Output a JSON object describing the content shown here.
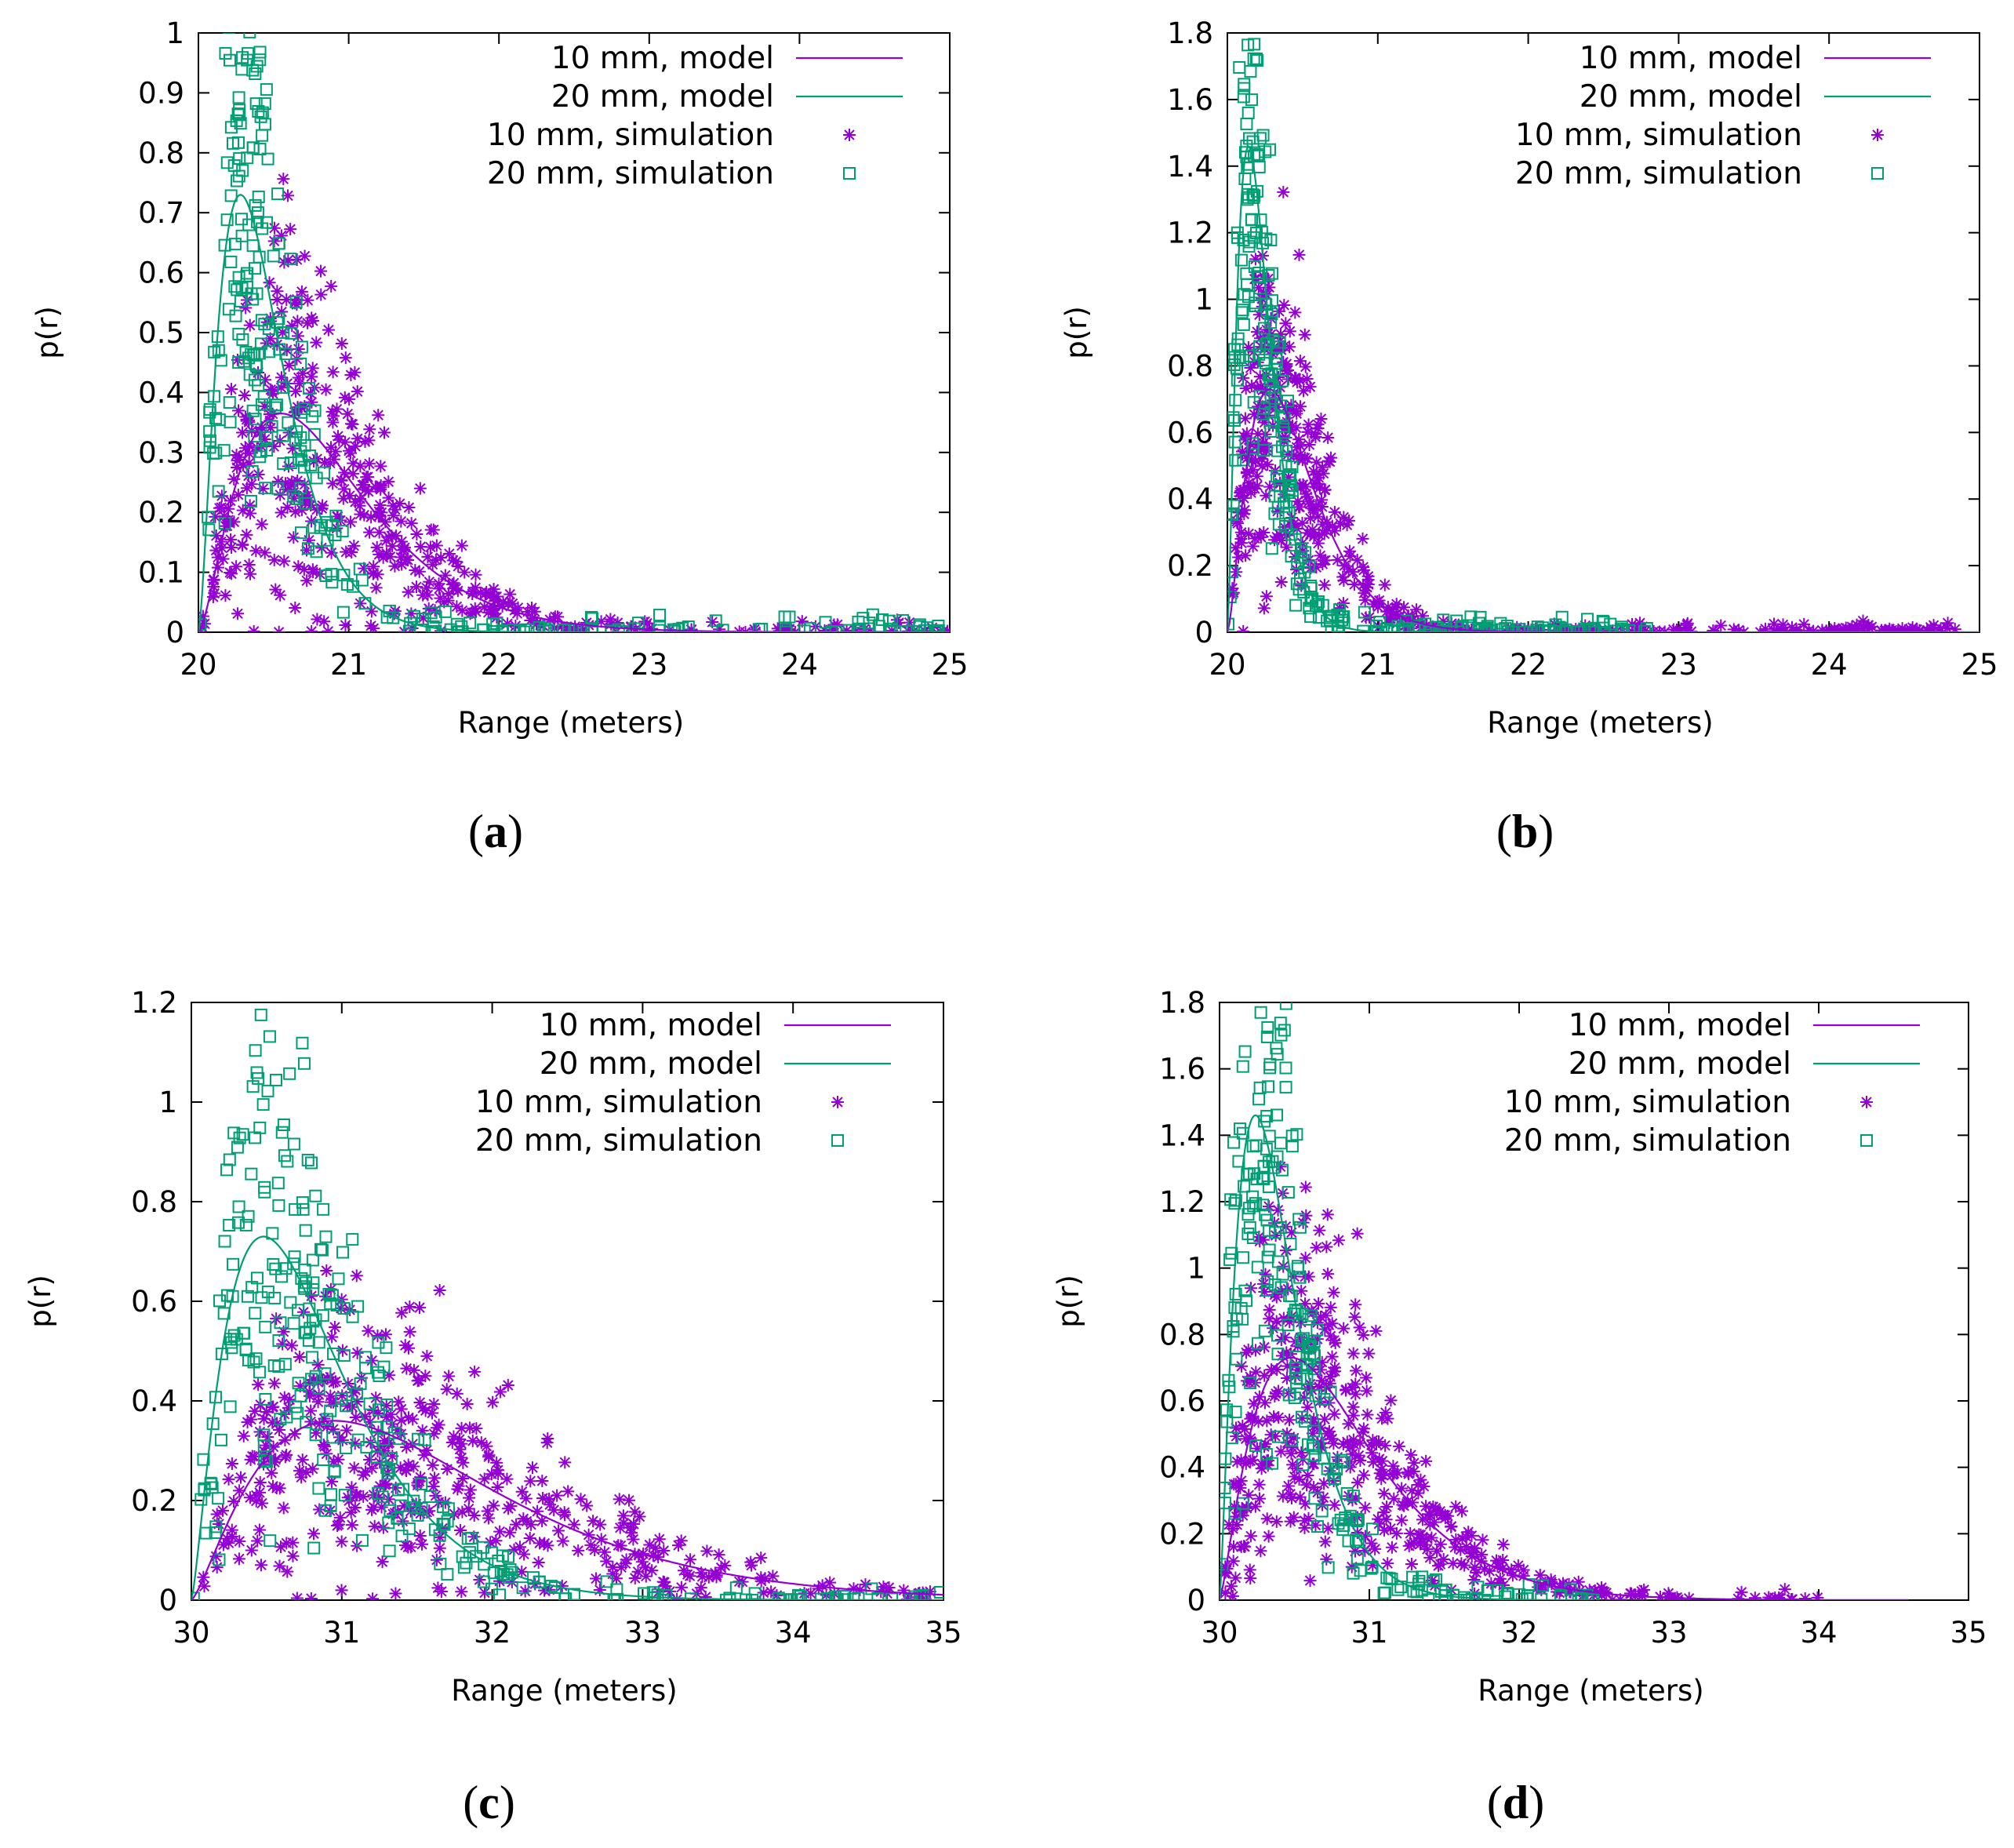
{
  "figure": {
    "domain": "Chart"
  },
  "colors": {
    "ten_mm": "#9400d3",
    "twenty_mm": "#009e73",
    "axis": "#000000"
  },
  "chart_data": [
    {
      "id": "a",
      "type": "line+scatter",
      "caption_letter": "a",
      "xlabel": "Range (meters)",
      "ylabel": "p(r)",
      "xlim": [
        20,
        25
      ],
      "ylim": [
        0,
        1
      ],
      "xticks": [
        20,
        21,
        22,
        23,
        24,
        25
      ],
      "yticks": [
        0,
        0.1,
        0.2,
        0.3,
        0.4,
        0.5,
        0.6,
        0.7,
        0.8,
        0.9,
        1
      ],
      "ytick_labels": [
        "0",
        "0.1",
        "0.2",
        "0.3",
        "0.4",
        "0.5",
        "0.6",
        "0.7",
        "0.8",
        "0.9",
        "1"
      ],
      "legend_position": "top-right",
      "series": [
        {
          "name": "10 mm, model",
          "kind": "line",
          "color": "#9400d3",
          "r0": 20,
          "mode": 20.55,
          "peak": 0.365,
          "k": 1.6,
          "x_end": 25
        },
        {
          "name": "20 mm, model",
          "kind": "line",
          "color": "#009e73",
          "r0": 20,
          "mode": 20.28,
          "peak": 0.73,
          "k": 1.6,
          "x_end": 25
        },
        {
          "name": "10 mm, simulation",
          "kind": "scatter",
          "marker": "star",
          "color": "#9400d3",
          "count": 480,
          "spread": 0.45,
          "seed": 11,
          "x_end": 25
        },
        {
          "name": "20 mm, simulation",
          "kind": "scatter",
          "marker": "square",
          "color": "#009e73",
          "count": 300,
          "spread": 0.35,
          "seed": 23,
          "x_end": 25
        }
      ]
    },
    {
      "id": "b",
      "type": "line+scatter",
      "caption_letter": "b",
      "xlabel": "Range (meters)",
      "ylabel": "p(r)",
      "xlim": [
        20,
        25
      ],
      "ylim": [
        0,
        1.8
      ],
      "xticks": [
        20,
        21,
        22,
        23,
        24,
        25
      ],
      "yticks": [
        0,
        0.2,
        0.4,
        0.6,
        0.8,
        1,
        1.2,
        1.4,
        1.6,
        1.8
      ],
      "ytick_labels": [
        "0",
        "0.2",
        "0.4",
        "0.6",
        "0.8",
        "1",
        "1.2",
        "1.4",
        "1.6",
        "1.8"
      ],
      "legend_position": "top-right",
      "series": [
        {
          "name": "10 mm, model",
          "kind": "line",
          "color": "#9400d3",
          "r0": 20,
          "mode": 20.28,
          "peak": 0.73,
          "k": 1.6,
          "x_end": 25
        },
        {
          "name": "20 mm, model",
          "kind": "line",
          "color": "#009e73",
          "r0": 20,
          "mode": 20.14,
          "peak": 1.46,
          "k": 1.6,
          "x_end": 25
        },
        {
          "name": "10 mm, simulation",
          "kind": "scatter",
          "marker": "star",
          "color": "#9400d3",
          "count": 480,
          "spread": 0.4,
          "seed": 37,
          "x_end": 24.85
        },
        {
          "name": "20 mm, simulation",
          "kind": "scatter",
          "marker": "square",
          "color": "#009e73",
          "count": 300,
          "spread": 0.32,
          "seed": 41,
          "x_end": 22.8
        }
      ]
    },
    {
      "id": "c",
      "type": "line+scatter",
      "caption_letter": "c",
      "xlabel": "Range (meters)",
      "ylabel": "p(r)",
      "xlim": [
        30,
        35
      ],
      "ylim": [
        0,
        1.2
      ],
      "xticks": [
        30,
        31,
        32,
        33,
        34,
        35
      ],
      "yticks": [
        0,
        0.2,
        0.4,
        0.6,
        0.8,
        1,
        1.2
      ],
      "ytick_labels": [
        "0",
        "0.2",
        "0.4",
        "0.6",
        "0.8",
        "1",
        "1.2"
      ],
      "legend_position": "top-right",
      "series": [
        {
          "name": "10 mm, model",
          "kind": "line",
          "color": "#9400d3",
          "r0": 30,
          "mode": 30.95,
          "peak": 0.36,
          "k": 1.35,
          "x_end": 35
        },
        {
          "name": "20 mm, model",
          "kind": "line",
          "color": "#009e73",
          "r0": 30,
          "mode": 30.48,
          "peak": 0.73,
          "k": 1.35,
          "x_end": 35
        },
        {
          "name": "10 mm, simulation",
          "kind": "scatter",
          "marker": "star",
          "color": "#9400d3",
          "count": 480,
          "spread": 0.45,
          "seed": 53,
          "x_end": 35
        },
        {
          "name": "20 mm, simulation",
          "kind": "scatter",
          "marker": "square",
          "color": "#009e73",
          "count": 300,
          "spread": 0.35,
          "seed": 67,
          "x_end": 35
        }
      ]
    },
    {
      "id": "d",
      "type": "line+scatter",
      "caption_letter": "d",
      "xlabel": "Range (meters)",
      "ylabel": "p(r)",
      "xlim": [
        30,
        35
      ],
      "ylim": [
        0,
        1.8
      ],
      "xticks": [
        30,
        31,
        32,
        33,
        34,
        35
      ],
      "yticks": [
        0,
        0.2,
        0.4,
        0.6,
        0.8,
        1,
        1.2,
        1.4,
        1.6,
        1.8
      ],
      "ytick_labels": [
        "0",
        "0.2",
        "0.4",
        "0.6",
        "0.8",
        "1",
        "1.2",
        "1.4",
        "1.6",
        "1.8"
      ],
      "legend_position": "top-right",
      "series": [
        {
          "name": "10 mm, model",
          "kind": "line",
          "color": "#9400d3",
          "r0": 30,
          "mode": 30.48,
          "peak": 0.73,
          "k": 1.35,
          "x_end": 34.6
        },
        {
          "name": "20 mm, model",
          "kind": "line",
          "color": "#009e73",
          "r0": 30,
          "mode": 30.24,
          "peak": 1.46,
          "k": 1.35,
          "x_end": 32.5
        },
        {
          "name": "10 mm, simulation",
          "kind": "scatter",
          "marker": "star",
          "color": "#9400d3",
          "count": 480,
          "spread": 0.42,
          "seed": 79,
          "x_end": 34
        },
        {
          "name": "20 mm, simulation",
          "kind": "scatter",
          "marker": "square",
          "color": "#009e73",
          "count": 260,
          "spread": 0.32,
          "seed": 83,
          "x_end": 32.5
        }
      ]
    }
  ]
}
